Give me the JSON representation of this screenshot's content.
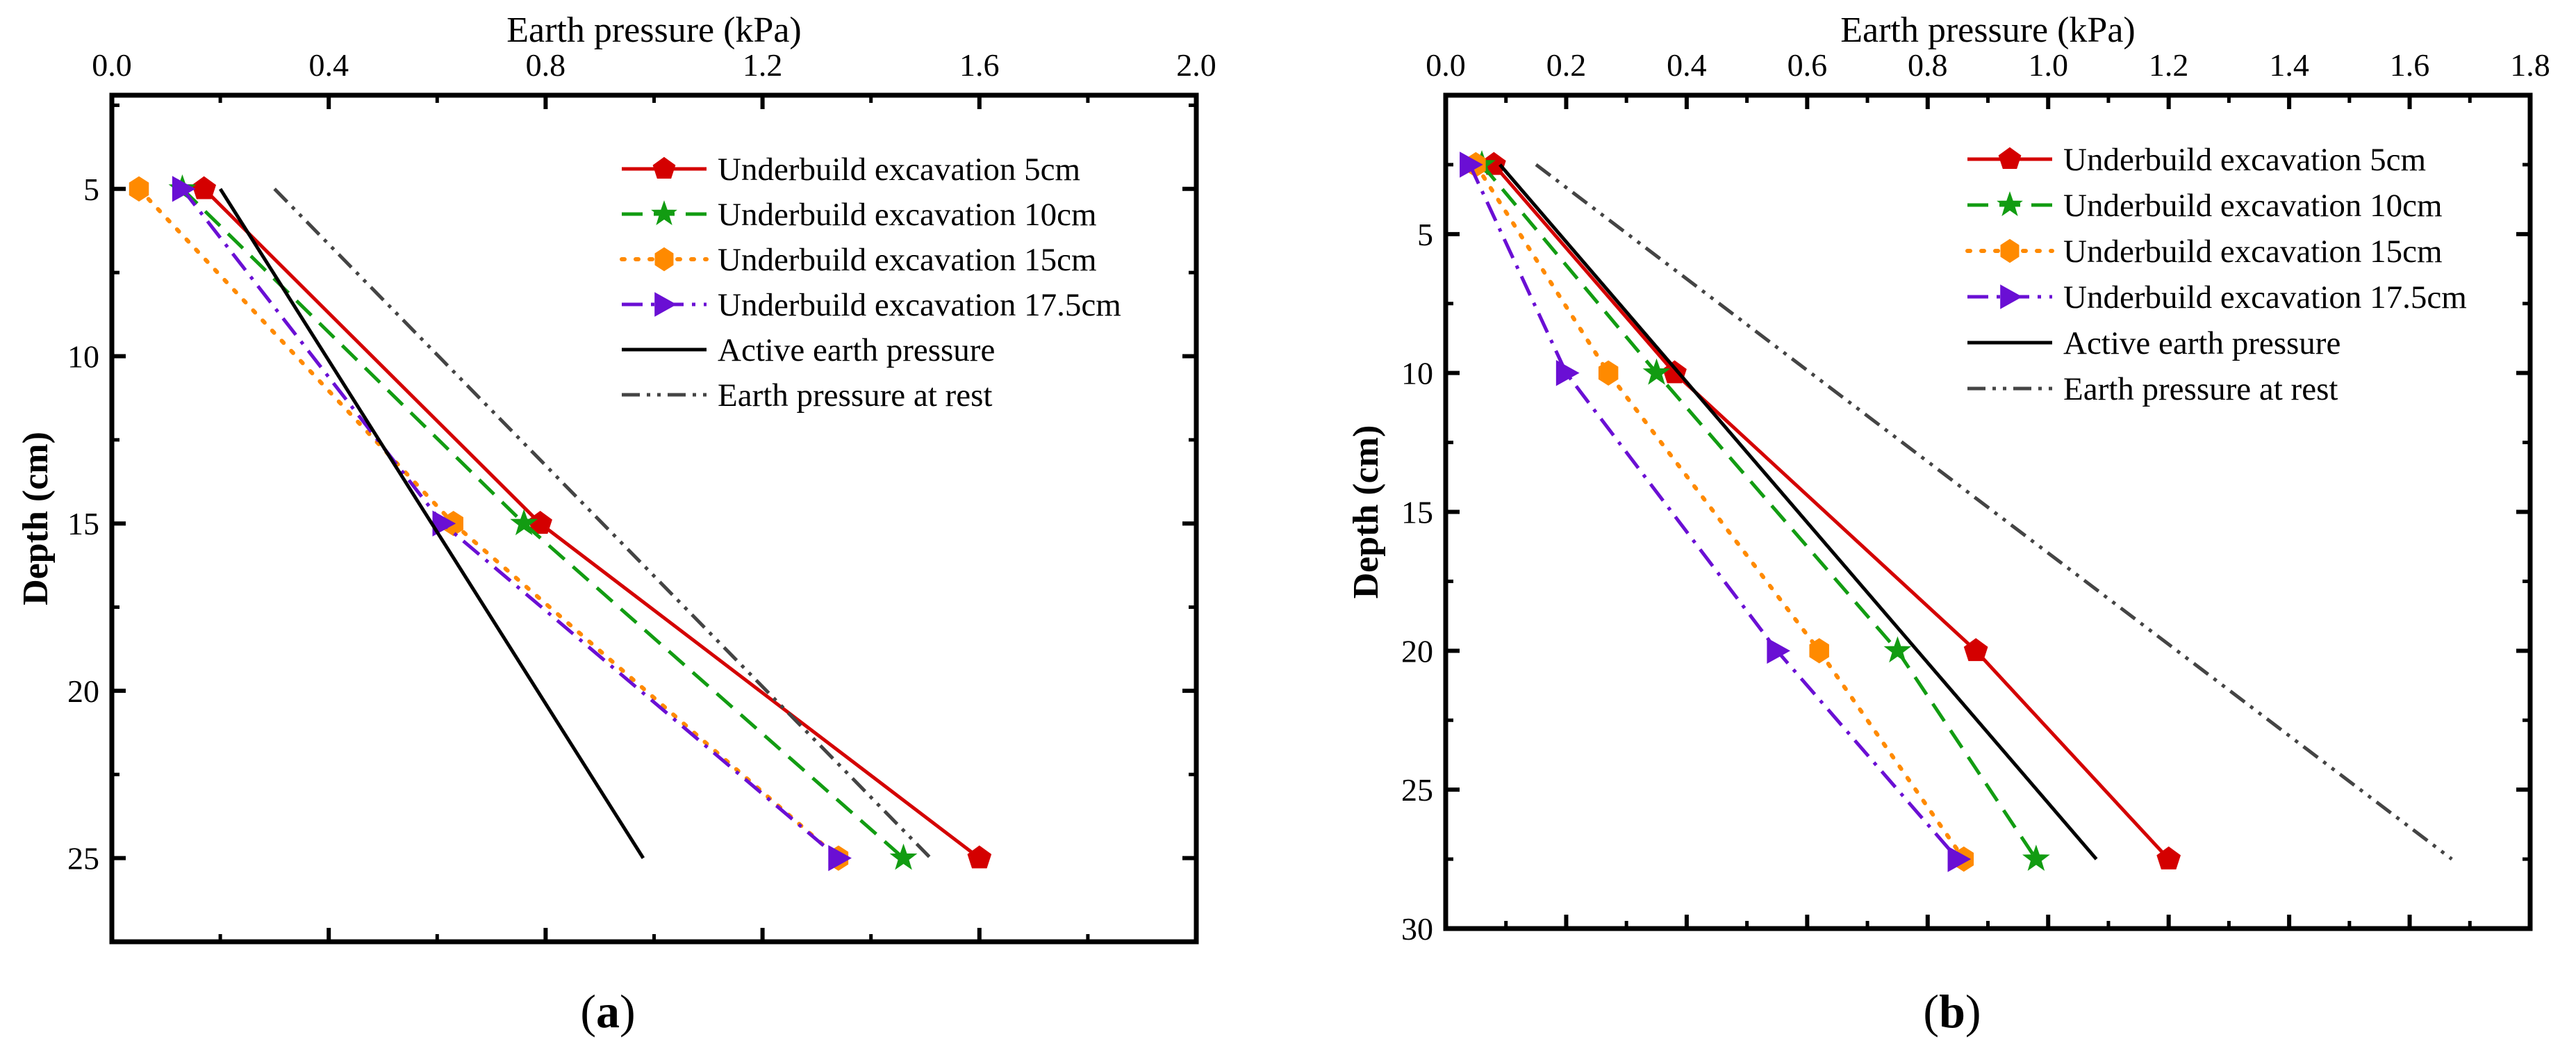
{
  "chart_data": [
    {
      "type": "line",
      "caption": "a",
      "xlabel": "Earth pressure (kPa)",
      "ylabel": "Depth (cm)",
      "xlim": [
        0,
        2.0
      ],
      "ylim": [
        2.2,
        27.5
      ],
      "xticks": [
        0.0,
        0.4,
        0.8,
        1.2,
        1.6,
        2.0
      ],
      "xtick_labels": [
        "0.0",
        "0.4",
        "0.8",
        "1.2",
        "1.6",
        "2.0"
      ],
      "yticks": [
        5,
        10,
        15,
        20,
        25
      ],
      "ytick_labels": [
        "5",
        "10",
        "15",
        "20",
        "25"
      ],
      "legend_position": "top-right",
      "series": [
        {
          "name": "Underbuild excavation 5cm",
          "color": "#d40000",
          "dash": "solid",
          "marker": "pentagon",
          "x": [
            0.17,
            0.79,
            1.6
          ],
          "y": [
            5,
            15,
            25
          ]
        },
        {
          "name": "Underbuild excavation 10cm",
          "color": "#129c12",
          "dash": "dash",
          "marker": "star",
          "x": [
            0.13,
            0.76,
            1.46
          ],
          "y": [
            5,
            15,
            25
          ]
        },
        {
          "name": "Underbuild excavation 15cm",
          "color": "#ff8a00",
          "dash": "dot",
          "marker": "hexagon",
          "x": [
            0.05,
            0.63,
            1.34
          ],
          "y": [
            5,
            15,
            25
          ]
        },
        {
          "name": "Underbuild excavation 17.5cm",
          "color": "#6a0fd4",
          "dash": "dashdot",
          "marker": "triangle-right",
          "x": [
            0.13,
            0.61,
            1.34
          ],
          "y": [
            5,
            15,
            25
          ]
        },
        {
          "name": "Active earth pressure",
          "color": "#000000",
          "dash": "solid",
          "marker": "none",
          "x": [
            0.2,
            0.98
          ],
          "y": [
            5,
            25
          ]
        },
        {
          "name": "Earth pressure at rest",
          "color": "#444444",
          "dash": "dashdotdot",
          "marker": "none",
          "x": [
            0.3,
            1.51
          ],
          "y": [
            5,
            25
          ]
        }
      ]
    },
    {
      "type": "line",
      "caption": "b",
      "xlabel": "Earth pressure (kPa)",
      "ylabel": "Depth (cm)",
      "xlim": [
        0,
        1.8
      ],
      "ylim": [
        0,
        30
      ],
      "xticks": [
        0.0,
        0.2,
        0.4,
        0.6,
        0.8,
        1.0,
        1.2,
        1.4,
        1.6,
        1.8
      ],
      "xtick_labels": [
        "0.0",
        "0.2",
        "0.4",
        "0.6",
        "0.8",
        "1.0",
        "1.2",
        "1.4",
        "1.6",
        "1.8"
      ],
      "yticks": [
        5,
        10,
        15,
        20,
        25,
        30
      ],
      "ytick_labels": [
        "5",
        "10",
        "15",
        "20",
        "25",
        "30"
      ],
      "legend_position": "top-right",
      "series": [
        {
          "name": "Underbuild excavation 5cm",
          "color": "#d40000",
          "dash": "solid",
          "marker": "pentagon",
          "x": [
            0.08,
            0.38,
            0.88,
            1.2
          ],
          "y": [
            2.5,
            10,
            20,
            27.5
          ]
        },
        {
          "name": "Underbuild excavation 10cm",
          "color": "#129c12",
          "dash": "dash",
          "marker": "star",
          "x": [
            0.06,
            0.35,
            0.75,
            0.98
          ],
          "y": [
            2.5,
            10,
            20,
            27.5
          ]
        },
        {
          "name": "Underbuild excavation 15cm",
          "color": "#ff8a00",
          "dash": "dot",
          "marker": "hexagon",
          "x": [
            0.05,
            0.27,
            0.62,
            0.86
          ],
          "y": [
            2.5,
            10,
            20,
            27.5
          ]
        },
        {
          "name": "Underbuild excavation 17.5cm",
          "color": "#6a0fd4",
          "dash": "dashdot",
          "marker": "triangle-right",
          "x": [
            0.04,
            0.2,
            0.55,
            0.85
          ],
          "y": [
            2.5,
            10,
            20,
            27.5
          ]
        },
        {
          "name": "Active earth pressure",
          "color": "#000000",
          "dash": "solid",
          "marker": "none",
          "x": [
            0.09,
            1.08
          ],
          "y": [
            2.5,
            27.5
          ]
        },
        {
          "name": "Earth pressure at rest",
          "color": "#444444",
          "dash": "dashdotdot",
          "marker": "none",
          "x": [
            0.15,
            1.67
          ],
          "y": [
            2.5,
            27.5
          ]
        }
      ]
    }
  ]
}
